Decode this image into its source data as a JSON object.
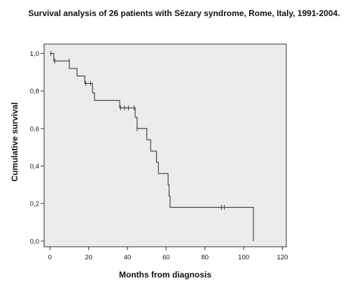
{
  "chart_data": {
    "type": "line",
    "subtype": "kaplan-meier-step",
    "title": "Survival analysis of 26 patients with Sézary syndrome, Rome, Italy, 1991-2004.",
    "xlabel": "Months from diagnosis",
    "ylabel": "Cumulative survival",
    "xlim": [
      -3,
      122
    ],
    "ylim": [
      -0.03,
      1.05
    ],
    "x_ticks": [
      0,
      20,
      40,
      60,
      80,
      100,
      120
    ],
    "x_tick_labels": [
      "0",
      "20",
      "40",
      "60",
      "80",
      "100",
      "120"
    ],
    "y_ticks": [
      0.0,
      0.2,
      0.4,
      0.6,
      0.8,
      1.0
    ],
    "y_tick_labels": [
      "0,0",
      "0,2",
      "0,4",
      "0,6",
      "0,8",
      "1,0"
    ],
    "grid": false,
    "legend": "none",
    "colors": {
      "plot_background": "#ececec",
      "line": "#3a3a3a",
      "frame": "#333333",
      "text": "#111111"
    },
    "series": [
      {
        "step_points": [
          [
            0,
            1.0
          ],
          [
            2,
            1.0
          ],
          [
            2,
            0.96
          ],
          [
            10,
            0.96
          ],
          [
            10,
            0.92
          ],
          [
            14,
            0.92
          ],
          [
            14,
            0.88
          ],
          [
            18,
            0.88
          ],
          [
            18,
            0.84
          ],
          [
            22,
            0.84
          ],
          [
            22,
            0.79
          ],
          [
            23,
            0.79
          ],
          [
            23,
            0.75
          ],
          [
            36,
            0.75
          ],
          [
            36,
            0.71
          ],
          [
            44,
            0.71
          ],
          [
            44,
            0.66
          ],
          [
            45,
            0.66
          ],
          [
            45,
            0.6
          ],
          [
            50,
            0.6
          ],
          [
            50,
            0.54
          ],
          [
            52,
            0.54
          ],
          [
            52,
            0.48
          ],
          [
            55,
            0.48
          ],
          [
            55,
            0.42
          ],
          [
            56,
            0.42
          ],
          [
            56,
            0.36
          ],
          [
            61,
            0.36
          ],
          [
            61,
            0.3
          ],
          [
            61.5,
            0.3
          ],
          [
            61.5,
            0.24
          ],
          [
            62,
            0.24
          ],
          [
            62,
            0.18
          ],
          [
            105,
            0.18
          ],
          [
            105,
            0.0
          ]
        ],
        "censored": [
          {
            "x": 0.5,
            "y": 1.0
          },
          {
            "x": 2.5,
            "y": 0.96
          },
          {
            "x": 10,
            "y": 0.96
          },
          {
            "x": 18.5,
            "y": 0.84
          },
          {
            "x": 21,
            "y": 0.84
          },
          {
            "x": 36.5,
            "y": 0.71
          },
          {
            "x": 38.5,
            "y": 0.71
          },
          {
            "x": 40.5,
            "y": 0.71
          },
          {
            "x": 43.5,
            "y": 0.71
          },
          {
            "x": 45,
            "y": 0.6
          },
          {
            "x": 88.5,
            "y": 0.18
          },
          {
            "x": 90,
            "y": 0.18
          }
        ]
      }
    ]
  }
}
